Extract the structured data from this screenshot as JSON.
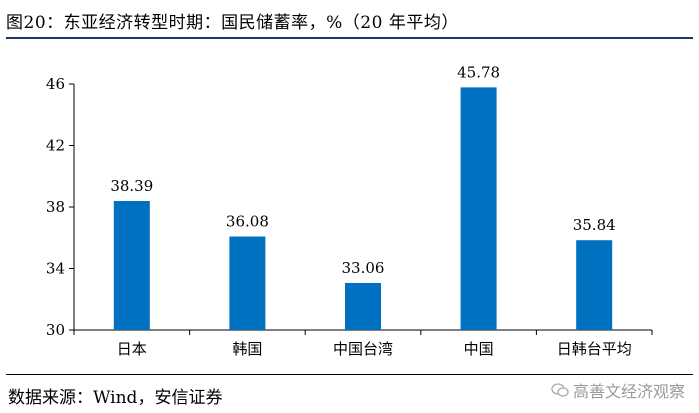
{
  "figure": {
    "title": "图20：东亚经济转型时期：国民储蓄率，%（20 年平均）",
    "source": "数据来源：Wind，安信证券",
    "watermark": "高善文经济观察"
  },
  "chart_data": {
    "type": "bar",
    "categories": [
      "日本",
      "韩国",
      "中国台湾",
      "中国",
      "日韩台平均"
    ],
    "values": [
      38.39,
      36.08,
      33.06,
      45.78,
      35.84
    ],
    "data_labels": [
      "38.39",
      "36.08",
      "33.06",
      "45.78",
      "35.84"
    ],
    "ylim": [
      30,
      46
    ],
    "yticks": [
      30,
      34,
      38,
      42,
      46
    ],
    "bar_color": "#0070c0",
    "grid": false,
    "legend": "none"
  }
}
